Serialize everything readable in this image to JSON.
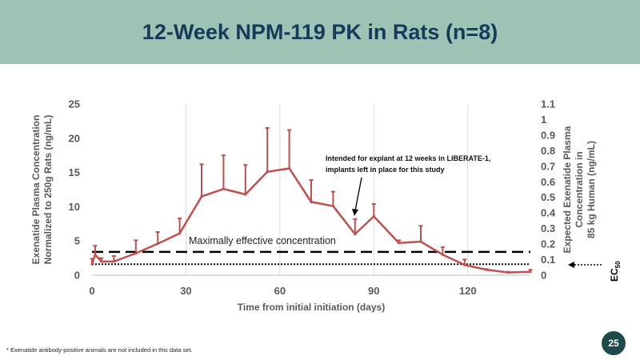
{
  "page": {
    "title": "12-Week NPM-119 PK in Rats (n=8)",
    "footnote": "*  Exenatide antibody-positive animals are not included in this data set.",
    "page_number": "25"
  },
  "colors": {
    "title_bg": "#9dc3b5",
    "title_text": "#17395a",
    "series": "#c0504d",
    "badge": "#1d4a4a"
  },
  "chart_data": {
    "type": "line",
    "xlabel": "Time from initial initiation (days)",
    "ylabel_left_line1": "Exenatide Plasma Concentration",
    "ylabel_left_line2": "Normalized to 250g Rats (ng/mL)",
    "ylabel_right_line1": "Expected Exenatide Plasma",
    "ylabel_right_line2": "Concentration in",
    "ylabel_right_line3": "85 kg Human (ng/mL)",
    "xlim": [
      0,
      140
    ],
    "ylim_left": [
      0,
      25
    ],
    "ylim_right": [
      0,
      1.1
    ],
    "xticks": [
      0,
      30,
      60,
      90,
      120
    ],
    "xtick_labels": [
      "0",
      "30",
      "60",
      "90",
      "120"
    ],
    "yticks_left": [
      0,
      5,
      10,
      15,
      20,
      25
    ],
    "ytick_labels_left": [
      "0",
      "5",
      "10",
      "15",
      "20",
      "25"
    ],
    "yticks_right": [
      0,
      0.1,
      0.2,
      0.3,
      0.4,
      0.5,
      0.6,
      0.7,
      0.8,
      0.9,
      1,
      1.1
    ],
    "ytick_labels_right": [
      "0",
      "0.1",
      "0.2",
      "0.3",
      "0.4",
      "0.5",
      "0.6",
      "0.7",
      "0.8",
      "0.9",
      "1",
      "1.1"
    ],
    "series": [
      {
        "name": "NPM-119",
        "x": [
          0,
          1,
          3,
          7,
          14,
          21,
          28,
          35,
          42,
          49,
          56,
          63,
          70,
          77,
          84,
          90,
          98,
          105,
          112,
          119,
          126,
          133,
          140
        ],
        "values": [
          1.6,
          3.0,
          2.0,
          2.0,
          3.2,
          4.6,
          6.1,
          11.5,
          12.6,
          11.8,
          15.1,
          15.6,
          10.7,
          10.1,
          6.0,
          8.6,
          4.7,
          4.9,
          3.0,
          1.5,
          0.8,
          0.4,
          0.5
        ],
        "errors": [
          0.8,
          1.3,
          0.5,
          0.8,
          1.9,
          1.7,
          2.2,
          4.7,
          4.9,
          4.3,
          6.4,
          5.6,
          3.2,
          2.1,
          2.2,
          1.8,
          0.4,
          2.3,
          1.1,
          0.8,
          0.1,
          0.1,
          0.3
        ]
      }
    ],
    "reference_lines": [
      {
        "name": "max-effective",
        "y": 3.4,
        "style": "dashed",
        "label": "Maximally effective concentration"
      },
      {
        "name": "ec50",
        "y": 1.6,
        "style": "dotted",
        "label": "EC",
        "label_sub": "50"
      }
    ],
    "annotation": {
      "line1": "Intended for explant at 12 weeks in LIBERATE-1,",
      "line2": "implants left in place for this study",
      "x": 84,
      "y": 6.3
    }
  }
}
